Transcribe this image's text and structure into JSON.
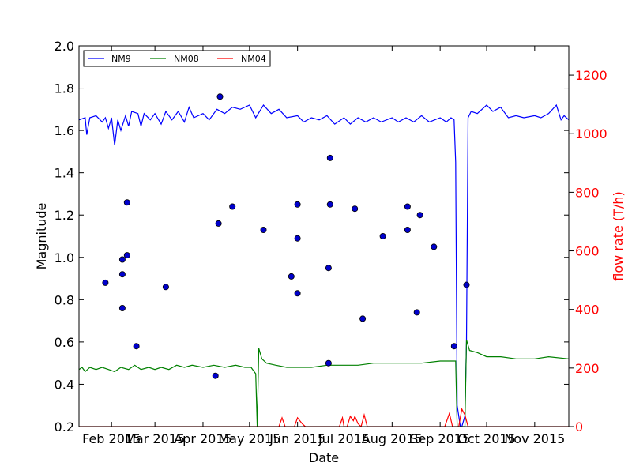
{
  "chart_data": {
    "type": "line",
    "xlabel": "Date",
    "ylabel_left": "Magnitude",
    "ylabel_right": "flow rate (T/h)",
    "x_range": [
      "2015-01-11",
      "2015-11-23"
    ],
    "y_left_range": [
      0.2,
      2.0
    ],
    "y_right_range": [
      0,
      1300
    ],
    "x_ticks": [
      {
        "date": "2015-02-01",
        "label": "Feb 2015"
      },
      {
        "date": "2015-03-01",
        "label": "Mar 2015"
      },
      {
        "date": "2015-04-01",
        "label": "Apr 2015"
      },
      {
        "date": "2015-05-01",
        "label": "May 2015"
      },
      {
        "date": "2015-06-01",
        "label": "Jun 2015"
      },
      {
        "date": "2015-07-01",
        "label": "Jul 2015"
      },
      {
        "date": "2015-08-01",
        "label": "Aug 2015"
      },
      {
        "date": "2015-09-01",
        "label": "Sep 2015"
      },
      {
        "date": "2015-10-01",
        "label": "Oct 2015"
      },
      {
        "date": "2015-11-01",
        "label": "Nov 2015"
      }
    ],
    "y_left_ticks": [
      "0.2",
      "0.4",
      "0.6",
      "0.8",
      "1.0",
      "1.2",
      "1.4",
      "1.6",
      "1.8",
      "2.0"
    ],
    "y_right_ticks": [
      "0",
      "200",
      "400",
      "600",
      "800",
      "1000",
      "1200"
    ],
    "legend_placement": "top-left",
    "colors": {
      "NM9": "#0000ff",
      "NM08": "#008000",
      "NM04": "#ff0000",
      "scatter": "#00008b",
      "right_axis": "#ff0000"
    },
    "series": [
      {
        "name": "NM9",
        "axis": "left",
        "points": [
          [
            "2015-01-11",
            1.65
          ],
          [
            "2015-01-15",
            1.66
          ],
          [
            "2015-01-16",
            1.58
          ],
          [
            "2015-01-18",
            1.66
          ],
          [
            "2015-01-22",
            1.67
          ],
          [
            "2015-01-26",
            1.64
          ],
          [
            "2015-01-28",
            1.66
          ],
          [
            "2015-01-30",
            1.61
          ],
          [
            "2015-02-01",
            1.66
          ],
          [
            "2015-02-03",
            1.53
          ],
          [
            "2015-02-05",
            1.65
          ],
          [
            "2015-02-07",
            1.6
          ],
          [
            "2015-02-10",
            1.67
          ],
          [
            "2015-02-12",
            1.62
          ],
          [
            "2015-02-14",
            1.69
          ],
          [
            "2015-02-18",
            1.68
          ],
          [
            "2015-02-20",
            1.62
          ],
          [
            "2015-02-22",
            1.68
          ],
          [
            "2015-02-26",
            1.65
          ],
          [
            "2015-03-01",
            1.68
          ],
          [
            "2015-03-05",
            1.63
          ],
          [
            "2015-03-08",
            1.69
          ],
          [
            "2015-03-12",
            1.65
          ],
          [
            "2015-03-16",
            1.69
          ],
          [
            "2015-03-20",
            1.64
          ],
          [
            "2015-03-23",
            1.71
          ],
          [
            "2015-03-26",
            1.66
          ],
          [
            "2015-04-01",
            1.68
          ],
          [
            "2015-04-05",
            1.65
          ],
          [
            "2015-04-10",
            1.7
          ],
          [
            "2015-04-15",
            1.68
          ],
          [
            "2015-04-20",
            1.71
          ],
          [
            "2015-04-25",
            1.7
          ],
          [
            "2015-05-01",
            1.72
          ],
          [
            "2015-05-05",
            1.66
          ],
          [
            "2015-05-10",
            1.72
          ],
          [
            "2015-05-15",
            1.68
          ],
          [
            "2015-05-20",
            1.7
          ],
          [
            "2015-05-25",
            1.66
          ],
          [
            "2015-06-01",
            1.67
          ],
          [
            "2015-06-05",
            1.64
          ],
          [
            "2015-06-10",
            1.66
          ],
          [
            "2015-06-15",
            1.65
          ],
          [
            "2015-06-20",
            1.67
          ],
          [
            "2015-06-25",
            1.63
          ],
          [
            "2015-07-01",
            1.66
          ],
          [
            "2015-07-05",
            1.63
          ],
          [
            "2015-07-10",
            1.66
          ],
          [
            "2015-07-15",
            1.64
          ],
          [
            "2015-07-20",
            1.66
          ],
          [
            "2015-07-25",
            1.64
          ],
          [
            "2015-08-01",
            1.66
          ],
          [
            "2015-08-05",
            1.64
          ],
          [
            "2015-08-10",
            1.66
          ],
          [
            "2015-08-15",
            1.64
          ],
          [
            "2015-08-20",
            1.67
          ],
          [
            "2015-08-25",
            1.64
          ],
          [
            "2015-09-01",
            1.66
          ],
          [
            "2015-09-05",
            1.64
          ],
          [
            "2015-09-08",
            1.66
          ],
          [
            "2015-09-10",
            1.65
          ],
          [
            "2015-09-11",
            1.45
          ],
          [
            "2015-09-12",
            0.3
          ],
          [
            "2015-09-14",
            0.2
          ],
          [
            "2015-09-15",
            0.2
          ],
          [
            "2015-09-17",
            0.25
          ],
          [
            "2015-09-18",
            0.6
          ],
          [
            "2015-09-19",
            1.66
          ],
          [
            "2015-09-21",
            1.69
          ],
          [
            "2015-09-25",
            1.68
          ],
          [
            "2015-10-01",
            1.72
          ],
          [
            "2015-10-05",
            1.69
          ],
          [
            "2015-10-10",
            1.71
          ],
          [
            "2015-10-15",
            1.66
          ],
          [
            "2015-10-20",
            1.67
          ],
          [
            "2015-10-25",
            1.66
          ],
          [
            "2015-11-01",
            1.67
          ],
          [
            "2015-11-05",
            1.66
          ],
          [
            "2015-11-10",
            1.68
          ],
          [
            "2015-11-15",
            1.72
          ],
          [
            "2015-11-18",
            1.65
          ],
          [
            "2015-11-20",
            1.67
          ],
          [
            "2015-11-23",
            1.65
          ]
        ]
      },
      {
        "name": "NM08",
        "axis": "left",
        "points": [
          [
            "2015-01-11",
            0.47
          ],
          [
            "2015-01-13",
            0.48
          ],
          [
            "2015-01-15",
            0.46
          ],
          [
            "2015-01-18",
            0.48
          ],
          [
            "2015-01-22",
            0.47
          ],
          [
            "2015-01-26",
            0.48
          ],
          [
            "2015-01-30",
            0.47
          ],
          [
            "2015-02-03",
            0.46
          ],
          [
            "2015-02-07",
            0.48
          ],
          [
            "2015-02-12",
            0.47
          ],
          [
            "2015-02-16",
            0.49
          ],
          [
            "2015-02-20",
            0.47
          ],
          [
            "2015-02-25",
            0.48
          ],
          [
            "2015-03-01",
            0.47
          ],
          [
            "2015-03-05",
            0.48
          ],
          [
            "2015-03-10",
            0.47
          ],
          [
            "2015-03-15",
            0.49
          ],
          [
            "2015-03-20",
            0.48
          ],
          [
            "2015-03-25",
            0.49
          ],
          [
            "2015-04-01",
            0.48
          ],
          [
            "2015-04-08",
            0.49
          ],
          [
            "2015-04-15",
            0.48
          ],
          [
            "2015-04-22",
            0.49
          ],
          [
            "2015-04-28",
            0.48
          ],
          [
            "2015-05-02",
            0.48
          ],
          [
            "2015-05-05",
            0.45
          ],
          [
            "2015-05-06",
            0.2
          ],
          [
            "2015-05-07",
            0.57
          ],
          [
            "2015-05-09",
            0.52
          ],
          [
            "2015-05-12",
            0.5
          ],
          [
            "2015-05-18",
            0.49
          ],
          [
            "2015-05-25",
            0.48
          ],
          [
            "2015-06-01",
            0.48
          ],
          [
            "2015-06-10",
            0.48
          ],
          [
            "2015-06-20",
            0.49
          ],
          [
            "2015-07-01",
            0.49
          ],
          [
            "2015-07-10",
            0.49
          ],
          [
            "2015-07-20",
            0.5
          ],
          [
            "2015-08-01",
            0.5
          ],
          [
            "2015-08-10",
            0.5
          ],
          [
            "2015-08-20",
            0.5
          ],
          [
            "2015-09-01",
            0.51
          ],
          [
            "2015-09-08",
            0.51
          ],
          [
            "2015-09-11",
            0.51
          ],
          [
            "2015-09-12",
            0.2
          ],
          [
            "2015-09-17",
            0.2
          ],
          [
            "2015-09-18",
            0.61
          ],
          [
            "2015-09-20",
            0.56
          ],
          [
            "2015-09-25",
            0.55
          ],
          [
            "2015-10-01",
            0.53
          ],
          [
            "2015-10-10",
            0.53
          ],
          [
            "2015-10-20",
            0.52
          ],
          [
            "2015-11-01",
            0.52
          ],
          [
            "2015-11-10",
            0.53
          ],
          [
            "2015-11-23",
            0.52
          ]
        ]
      },
      {
        "name": "NM04",
        "axis": "right",
        "points": [
          [
            "2015-01-11",
            0
          ],
          [
            "2015-05-20",
            0
          ],
          [
            "2015-05-22",
            30
          ],
          [
            "2015-05-24",
            0
          ],
          [
            "2015-05-30",
            0
          ],
          [
            "2015-06-01",
            30
          ],
          [
            "2015-06-04",
            10
          ],
          [
            "2015-06-06",
            0
          ],
          [
            "2015-06-28",
            0
          ],
          [
            "2015-06-30",
            30
          ],
          [
            "2015-07-01",
            0
          ],
          [
            "2015-07-03",
            0
          ],
          [
            "2015-07-05",
            35
          ],
          [
            "2015-07-07",
            20
          ],
          [
            "2015-07-08",
            35
          ],
          [
            "2015-07-10",
            10
          ],
          [
            "2015-07-12",
            0
          ],
          [
            "2015-07-14",
            40
          ],
          [
            "2015-07-16",
            0
          ],
          [
            "2015-09-04",
            0
          ],
          [
            "2015-09-07",
            45
          ],
          [
            "2015-09-09",
            0
          ],
          [
            "2015-09-13",
            0
          ],
          [
            "2015-09-15",
            60
          ],
          [
            "2015-09-17",
            40
          ],
          [
            "2015-09-19",
            0
          ],
          [
            "2015-11-23",
            0
          ]
        ]
      },
      {
        "name": "",
        "axis": "left",
        "type": "scatter",
        "points": [
          [
            "2015-01-28",
            0.88
          ],
          [
            "2015-02-08",
            0.99
          ],
          [
            "2015-02-08",
            0.92
          ],
          [
            "2015-02-08",
            0.76
          ],
          [
            "2015-02-11",
            1.26
          ],
          [
            "2015-02-11",
            1.01
          ],
          [
            "2015-02-17",
            0.58
          ],
          [
            "2015-03-08",
            0.86
          ],
          [
            "2015-04-09",
            0.44
          ],
          [
            "2015-04-11",
            1.16
          ],
          [
            "2015-04-12",
            1.76
          ],
          [
            "2015-04-20",
            1.24
          ],
          [
            "2015-05-10",
            1.13
          ],
          [
            "2015-05-28",
            0.91
          ],
          [
            "2015-06-01",
            1.25
          ],
          [
            "2015-06-01",
            1.09
          ],
          [
            "2015-06-01",
            0.83
          ],
          [
            "2015-06-21",
            0.95
          ],
          [
            "2015-06-21",
            0.5
          ],
          [
            "2015-06-22",
            1.47
          ],
          [
            "2015-06-22",
            1.25
          ],
          [
            "2015-07-08",
            1.23
          ],
          [
            "2015-07-13",
            0.71
          ],
          [
            "2015-07-26",
            1.1
          ],
          [
            "2015-08-11",
            1.24
          ],
          [
            "2015-08-11",
            1.13
          ],
          [
            "2015-08-17",
            0.74
          ],
          [
            "2015-08-19",
            1.2
          ],
          [
            "2015-08-28",
            1.05
          ],
          [
            "2015-09-10",
            0.58
          ],
          [
            "2015-09-18",
            0.87
          ]
        ]
      }
    ]
  }
}
